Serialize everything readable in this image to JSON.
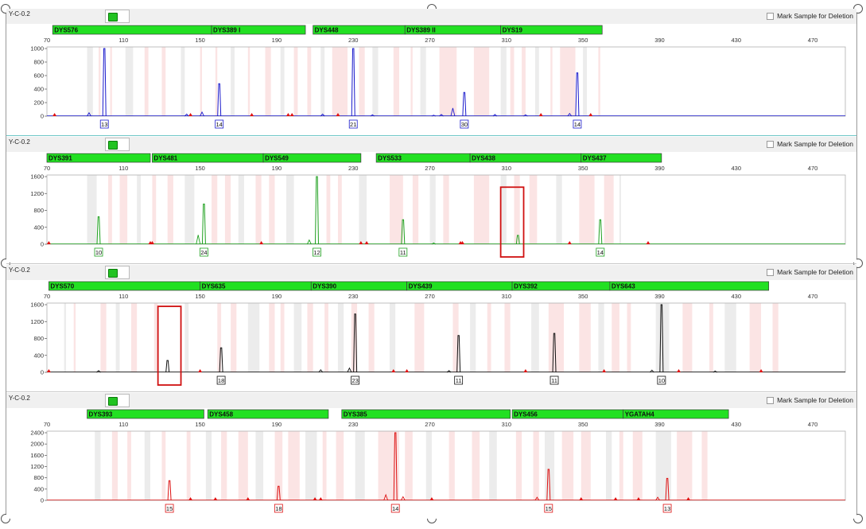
{
  "panels": [
    {
      "name": "Y-C-0.2",
      "mark_label": "Mark Sample for Deletion",
      "dye_color": "#1a1acc",
      "y_ticks": [
        0,
        200,
        400,
        600,
        800,
        1000
      ],
      "y_max": 1000,
      "loci": [
        {
          "name": "DYS576",
          "start": 73,
          "end": 156
        },
        {
          "name": "DYS389 I",
          "start": 156,
          "end": 205
        },
        {
          "name": "DYS448",
          "start": 209,
          "end": 257
        },
        {
          "name": "DYS389 II",
          "start": 257,
          "end": 307
        },
        {
          "name": "DYS19",
          "start": 307,
          "end": 360
        }
      ],
      "peaks": [
        {
          "x": 100,
          "h": 1000,
          "label": "13"
        },
        {
          "x": 160,
          "h": 480,
          "label": "14"
        },
        {
          "x": 230,
          "h": 1000,
          "label": "21"
        },
        {
          "x": 288,
          "h": 350,
          "label": "30"
        },
        {
          "x": 347,
          "h": 640,
          "label": "14"
        }
      ],
      "minor_peaks": [
        [
          92,
          50
        ],
        [
          151,
          60
        ],
        [
          143,
          30
        ],
        [
          214,
          30
        ],
        [
          240,
          20
        ],
        [
          276,
          25
        ],
        [
          282,
          120
        ],
        [
          304,
          25
        ],
        [
          343,
          40
        ],
        [
          272,
          15
        ],
        [
          320,
          20
        ]
      ],
      "red_marks": [
        74,
        145,
        177,
        196,
        198,
        222,
        328,
        354
      ],
      "bins": [
        [
          91,
          94
        ],
        [
          97,
          98
        ],
        [
          103,
          104
        ],
        [
          111,
          115
        ],
        [
          121,
          123
        ],
        [
          130,
          132
        ],
        [
          140,
          142
        ],
        [
          150,
          151
        ],
        [
          158,
          159
        ],
        [
          166,
          168
        ],
        [
          175,
          176
        ],
        [
          184,
          187
        ],
        [
          192,
          194
        ],
        [
          199,
          201
        ],
        [
          206,
          208
        ],
        [
          213,
          215
        ],
        [
          219,
          227
        ],
        [
          233,
          236
        ],
        [
          240,
          243
        ],
        [
          251,
          254
        ],
        [
          260,
          261
        ],
        [
          265,
          268
        ],
        [
          275,
          284
        ],
        [
          293,
          301
        ],
        [
          307,
          310
        ],
        [
          312,
          314
        ],
        [
          318,
          320
        ],
        [
          325,
          327
        ],
        [
          333,
          334
        ],
        [
          338,
          346
        ],
        [
          350,
          352
        ],
        [
          358,
          359
        ]
      ]
    },
    {
      "name": "Y-C-0.2",
      "mark_label": "Mark Sample for Deletion",
      "dye_color": "#1ea01e",
      "y_ticks": [
        0,
        400,
        800,
        1200,
        1600
      ],
      "y_max": 1600,
      "loci": [
        {
          "name": "DYS391",
          "start": 70,
          "end": 124
        },
        {
          "name": "DYS481",
          "start": 125,
          "end": 183
        },
        {
          "name": "DYS549",
          "start": 183,
          "end": 234
        },
        {
          "name": "DYS533",
          "start": 242,
          "end": 291
        },
        {
          "name": "DYS438",
          "start": 291,
          "end": 349
        },
        {
          "name": "DYS437",
          "start": 349,
          "end": 391
        }
      ],
      "peaks": [
        {
          "x": 97,
          "h": 650,
          "label": "10"
        },
        {
          "x": 152,
          "h": 950,
          "label": "24"
        },
        {
          "x": 211,
          "h": 1600,
          "label": "12"
        },
        {
          "x": 256,
          "h": 580,
          "label": "11"
        },
        {
          "x": 316,
          "h": 210,
          "label": ""
        },
        {
          "x": 359,
          "h": 580,
          "label": "14"
        }
      ],
      "minor_peaks": [
        [
          149,
          220
        ],
        [
          207,
          100
        ],
        [
          272,
          30
        ]
      ],
      "red_marks": [
        71,
        124,
        125,
        182,
        234,
        237,
        286,
        287,
        343,
        384
      ],
      "label_positions": {
        "10": [
          97
        ],
        "24": [
          152
        ],
        "12": [
          211
        ],
        "11": [
          256
        ],
        "14": [
          359
        ]
      },
      "highlight_box": {
        "x0": 307,
        "x1": 319,
        "h_top": 1350
      },
      "bins": [
        [
          91,
          96
        ],
        [
          102,
          104
        ],
        [
          108,
          112
        ],
        [
          117,
          119
        ],
        [
          125,
          127
        ],
        [
          133,
          136
        ],
        [
          142,
          147
        ],
        [
          156,
          159
        ],
        [
          163,
          166
        ],
        [
          170,
          173
        ],
        [
          179,
          182
        ],
        [
          186,
          189
        ],
        [
          195,
          199
        ],
        [
          216,
          218
        ],
        [
          222,
          224
        ],
        [
          233,
          237
        ],
        [
          249,
          256
        ],
        [
          261,
          264
        ],
        [
          270,
          273
        ],
        [
          277,
          280
        ],
        [
          293,
          301
        ],
        [
          307,
          310
        ],
        [
          314,
          317
        ],
        [
          322,
          326
        ],
        [
          336,
          339
        ],
        [
          348,
          356
        ],
        [
          361,
          366
        ],
        [
          369,
          369
        ]
      ]
    },
    {
      "name": "Y-C-0.2",
      "mark_label": "Mark Sample for Deletion",
      "dye_color": "#111111",
      "y_ticks": [
        0,
        400,
        800,
        1200,
        1600
      ],
      "y_max": 1600,
      "loci": [
        {
          "name": "DYS570",
          "start": 71,
          "end": 150
        },
        {
          "name": "DYS635",
          "start": 150,
          "end": 208
        },
        {
          "name": "DYS390",
          "start": 208,
          "end": 258
        },
        {
          "name": "DYS439",
          "start": 258,
          "end": 313
        },
        {
          "name": "DYS392",
          "start": 313,
          "end": 364
        },
        {
          "name": "DYS643",
          "start": 364,
          "end": 447
        }
      ],
      "peaks": [
        {
          "x": 133,
          "h": 280,
          "label": ""
        },
        {
          "x": 161,
          "h": 580,
          "label": "18"
        },
        {
          "x": 231,
          "h": 1380,
          "label": "23"
        },
        {
          "x": 285,
          "h": 870,
          "label": "11"
        },
        {
          "x": 335,
          "h": 920,
          "label": "11"
        },
        {
          "x": 391,
          "h": 1600,
          "label": "10"
        }
      ],
      "minor_peaks": [
        [
          97,
          40
        ],
        [
          213,
          60
        ],
        [
          228,
          100
        ],
        [
          280,
          40
        ],
        [
          386,
          50
        ],
        [
          419,
          30
        ]
      ],
      "red_marks": [
        71,
        150,
        251,
        258,
        320,
        361,
        400,
        443
      ],
      "highlight_box": {
        "x0": 128,
        "x1": 140,
        "h_top": 1560
      },
      "bins": [
        [
          79,
          80
        ],
        [
          84,
          85
        ],
        [
          98,
          101
        ],
        [
          106,
          108
        ],
        [
          114,
          117
        ],
        [
          126,
          128
        ],
        [
          142,
          144
        ],
        [
          159,
          161
        ],
        [
          166,
          169
        ],
        [
          175,
          181
        ],
        [
          186,
          189
        ],
        [
          192,
          194
        ],
        [
          199,
          203
        ],
        [
          206,
          209
        ],
        [
          215,
          217
        ],
        [
          222,
          225
        ],
        [
          229,
          232
        ],
        [
          238,
          241
        ],
        [
          249,
          252
        ],
        [
          262,
          267
        ],
        [
          282,
          285
        ],
        [
          291,
          294
        ],
        [
          300,
          302
        ],
        [
          309,
          312
        ],
        [
          323,
          327
        ],
        [
          332,
          340
        ],
        [
          348,
          354
        ],
        [
          358,
          361
        ],
        [
          365,
          369
        ],
        [
          373,
          375
        ],
        [
          388,
          395
        ],
        [
          402,
          407
        ],
        [
          416,
          418
        ],
        [
          424,
          430
        ],
        [
          437,
          443
        ],
        [
          449,
          452
        ]
      ]
    },
    {
      "name": "Y-C-0.2",
      "mark_label": "Mark Sample for Deletion",
      "dye_color": "#dd1111",
      "y_ticks": [
        0,
        400,
        800,
        1200,
        1600,
        2000,
        2400
      ],
      "y_max": 2400,
      "loci": [
        {
          "name": "DYS393",
          "start": 91,
          "end": 152
        },
        {
          "name": "DYS458",
          "start": 154,
          "end": 217
        },
        {
          "name": "DYS385",
          "start": 224,
          "end": 312
        },
        {
          "name": "DYS456",
          "start": 313,
          "end": 371
        },
        {
          "name": "YGATAH4",
          "start": 371,
          "end": 426
        }
      ],
      "peaks": [
        {
          "x": 134,
          "h": 700,
          "label": "15"
        },
        {
          "x": 191,
          "h": 500,
          "label": "18"
        },
        {
          "x": 252,
          "h": 2400,
          "label": "14"
        },
        {
          "x": 332,
          "h": 1100,
          "label": "15"
        },
        {
          "x": 394,
          "h": 780,
          "label": "13"
        }
      ],
      "minor_peaks": [
        [
          247,
          200
        ],
        [
          256,
          130
        ],
        [
          326,
          110
        ],
        [
          389,
          110
        ]
      ],
      "red_marks": [
        145,
        158,
        175,
        210,
        213,
        271,
        349,
        367,
        379,
        405
      ],
      "bins": [
        [
          95,
          98
        ],
        [
          104,
          107
        ],
        [
          112,
          114
        ],
        [
          121,
          124
        ],
        [
          130,
          132
        ],
        [
          143,
          145
        ],
        [
          153,
          156
        ],
        [
          161,
          164
        ],
        [
          170,
          175
        ],
        [
          179,
          183
        ],
        [
          189,
          193
        ],
        [
          196,
          202
        ],
        [
          205,
          211
        ],
        [
          214,
          216
        ],
        [
          221,
          225
        ],
        [
          231,
          236
        ],
        [
          243,
          254
        ],
        [
          257,
          261
        ],
        [
          268,
          271
        ],
        [
          280,
          283
        ],
        [
          292,
          296
        ],
        [
          301,
          305
        ],
        [
          315,
          318
        ],
        [
          324,
          327
        ],
        [
          330,
          335
        ],
        [
          339,
          345
        ],
        [
          349,
          354
        ],
        [
          362,
          365
        ],
        [
          369,
          371
        ],
        [
          376,
          381
        ],
        [
          388,
          396
        ],
        [
          399,
          407
        ],
        [
          412,
          415
        ]
      ]
    }
  ],
  "x_axis": {
    "min": 70,
    "max": 487,
    "ticks": [
      70,
      110,
      150,
      190,
      230,
      270,
      310,
      350,
      390,
      430,
      470
    ]
  }
}
